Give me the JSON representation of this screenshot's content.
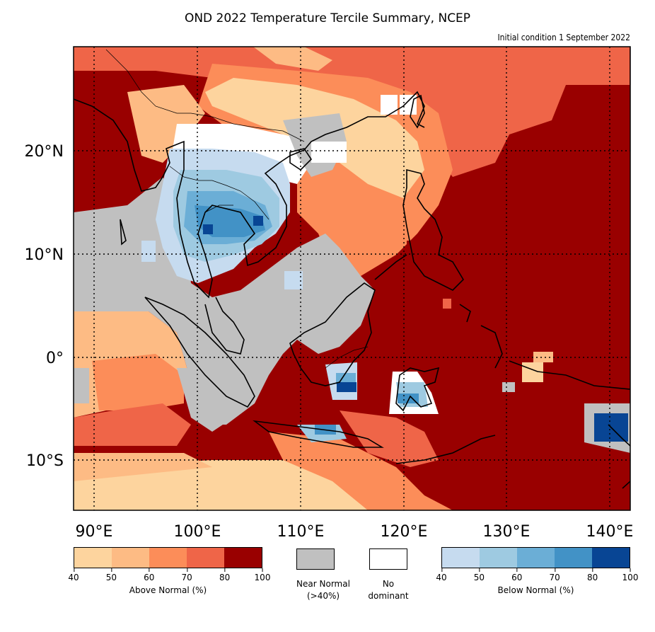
{
  "title": "OND 2022 Temperature Tercile Summary, NCEP",
  "subtitle": "Initial condition 1 September 2022",
  "map": {
    "lon_range": [
      88,
      142
    ],
    "lat_range": [
      -15,
      30
    ],
    "lon_ticks": [
      "90°E",
      "100°E",
      "110°E",
      "120°E",
      "130°E",
      "140°E"
    ],
    "lat_ticks": [
      "20°N",
      "10°N",
      "0°",
      "10°S"
    ],
    "gridlines": "dotted"
  },
  "legend": {
    "above_normal": {
      "label": "Above Normal (%)",
      "ticks": [
        "40",
        "50",
        "60",
        "70",
        "80",
        "100"
      ],
      "colors": [
        "#fdd49e",
        "#fdbb84",
        "#fc8d59",
        "#ef6548",
        "#990000"
      ]
    },
    "near_normal": {
      "line1": "Near Normal",
      "line2": "(>40%)",
      "color": "#c0c0c0"
    },
    "no_dominant": {
      "line1": "No",
      "line2": "dominant",
      "color": "#ffffff"
    },
    "below_normal": {
      "label": "Below Normal (%)",
      "ticks": [
        "40",
        "50",
        "60",
        "70",
        "80",
        "100"
      ],
      "colors": [
        "#c6dbef",
        "#9ecae1",
        "#6baed6",
        "#4292c6",
        "#084594"
      ]
    }
  }
}
